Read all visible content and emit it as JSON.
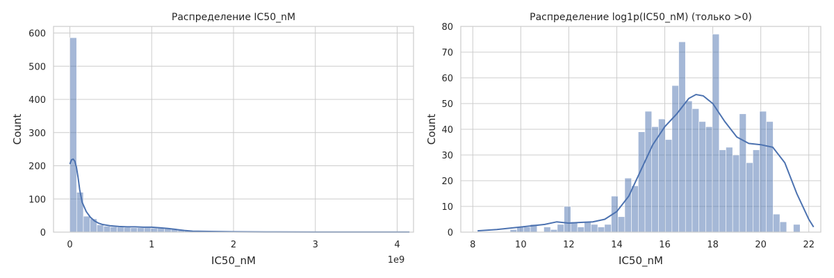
{
  "chart_data": [
    {
      "type": "bar",
      "title": "Распределение IC50_nM",
      "xlabel": "IC50_nM",
      "ylabel": "Count",
      "x_offset_label": "1e9",
      "xlim": [
        -0.2,
        4.2
      ],
      "ylim": [
        0,
        620
      ],
      "x_ticks": [
        0,
        1,
        2,
        3,
        4
      ],
      "x_tick_labels": [
        "0",
        "1",
        "2",
        "3",
        "4"
      ],
      "y_ticks": [
        0,
        100,
        200,
        300,
        400,
        500,
        600
      ],
      "y_tick_labels": [
        "0",
        "100",
        "200",
        "300",
        "400",
        "500",
        "600"
      ],
      "grid": true,
      "bin_start": 0,
      "bin_width": 0.0825,
      "values": [
        586,
        120,
        48,
        40,
        22,
        18,
        16,
        15,
        14,
        13,
        13,
        13,
        12,
        12,
        11,
        9,
        6,
        4,
        2,
        2,
        1,
        1,
        1,
        1,
        1,
        1,
        0,
        0,
        0,
        0,
        0,
        0,
        0,
        0,
        0,
        0,
        0,
        0,
        0,
        0,
        0,
        0,
        0,
        0,
        0,
        0,
        0,
        0,
        0,
        1
      ],
      "kde": {
        "x": [
          0,
          0.02,
          0.04,
          0.06,
          0.08,
          0.1,
          0.12,
          0.15,
          0.2,
          0.25,
          0.3,
          0.35,
          0.4,
          0.5,
          0.6,
          0.7,
          0.8,
          0.9,
          1.0,
          1.1,
          1.2,
          1.3,
          1.4,
          1.5,
          1.7,
          2.0,
          2.5,
          3.0,
          3.5,
          4.0,
          4.15
        ],
        "y": [
          205,
          218,
          220,
          214,
          196,
          165,
          128,
          90,
          62,
          45,
          34,
          27,
          23,
          19,
          17,
          16,
          16,
          15,
          15,
          13,
          11,
          8,
          5,
          3,
          2,
          1,
          0.5,
          0.3,
          0.2,
          0.2,
          0.2
        ]
      }
    },
    {
      "type": "bar",
      "title": "Распределение log1p(IC50_nM) (только >0)",
      "xlabel": "IC50_nM",
      "ylabel": "Count",
      "xlim": [
        7.5,
        22.5
      ],
      "ylim": [
        0,
        80
      ],
      "x_ticks": [
        8,
        10,
        12,
        14,
        16,
        18,
        20,
        22
      ],
      "x_tick_labels": [
        "8",
        "10",
        "12",
        "14",
        "16",
        "18",
        "20",
        "22"
      ],
      "y_ticks": [
        0,
        10,
        20,
        30,
        40,
        50,
        60,
        70,
        80
      ],
      "y_tick_labels": [
        "0",
        "10",
        "20",
        "30",
        "40",
        "50",
        "60",
        "70",
        "80"
      ],
      "grid": true,
      "bin_start": 8.15,
      "bin_width": 0.281,
      "values": [
        0,
        0,
        0,
        0,
        0,
        1,
        2,
        2,
        3,
        0,
        2,
        1,
        3,
        10,
        4,
        2,
        4,
        3,
        2,
        3,
        14,
        6,
        21,
        18,
        39,
        47,
        41,
        44,
        36,
        57,
        74,
        51,
        48,
        43,
        41,
        77,
        32,
        33,
        30,
        46,
        27,
        32,
        47,
        43,
        7,
        4,
        0,
        3
      ],
      "kde": {
        "x": [
          8.2,
          9,
          10,
          11,
          11.5,
          12,
          12.5,
          13,
          13.5,
          14,
          14.5,
          15,
          15.5,
          16,
          16.5,
          17,
          17.3,
          17.6,
          18,
          18.5,
          19,
          19.5,
          20,
          20.5,
          21,
          21.5,
          22,
          22.2
        ],
        "y": [
          0.5,
          1,
          2,
          3,
          4,
          3.5,
          3.8,
          4,
          5,
          8,
          14,
          24,
          34,
          41,
          46,
          52,
          53.5,
          53,
          50,
          43,
          37,
          34.5,
          34,
          33,
          27,
          15,
          5,
          2
        ]
      }
    }
  ]
}
